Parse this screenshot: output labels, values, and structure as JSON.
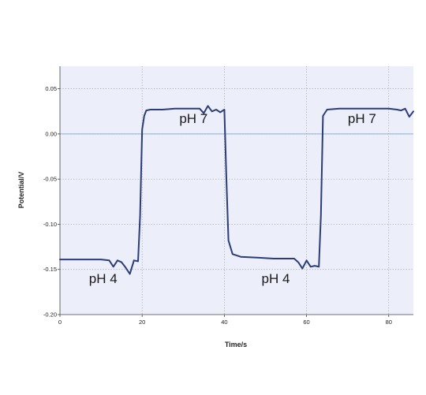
{
  "chart_data": {
    "type": "line",
    "title": "",
    "xlabel": "Time/s",
    "ylabel": "Potential/V",
    "xlim": [
      0,
      86
    ],
    "ylim": [
      -0.2,
      0.075
    ],
    "x_ticks": [
      0,
      20,
      40,
      60,
      80
    ],
    "x_tick_labels": [
      "0",
      "20",
      "40",
      "60",
      "80"
    ],
    "y_ticks": [
      0.05,
      0.0,
      -0.05,
      -0.1,
      -0.15,
      -0.2
    ],
    "y_tick_labels": [
      "0.05",
      "0.00",
      "-0.05",
      "-0.10",
      "-0.15",
      "-0.20"
    ],
    "grid": "dotted",
    "plot_background": "#eceef9",
    "reference_line_y": 0.0,
    "reference_line_color": "#6fa0c8",
    "series": [
      {
        "color": "#2b3d78",
        "x": [
          0,
          4,
          8,
          10,
          12,
          13,
          14,
          15,
          16,
          17,
          18,
          19,
          19.5,
          20,
          20.5,
          21,
          22,
          25,
          28,
          30,
          32,
          34,
          35,
          36,
          37,
          38,
          39,
          40,
          40.5,
          41,
          42,
          44,
          48,
          52,
          55,
          57,
          58,
          59,
          60,
          61,
          62,
          63,
          63.5,
          64,
          65,
          68,
          72,
          76,
          78,
          80,
          82,
          83,
          84,
          85,
          86
        ],
        "y": [
          -0.139,
          -0.139,
          -0.139,
          -0.139,
          -0.14,
          -0.147,
          -0.14,
          -0.142,
          -0.148,
          -0.155,
          -0.14,
          -0.141,
          -0.09,
          0.005,
          0.02,
          0.026,
          0.027,
          0.027,
          0.028,
          0.028,
          0.028,
          0.028,
          0.023,
          0.031,
          0.025,
          0.027,
          0.024,
          0.027,
          -0.05,
          -0.118,
          -0.133,
          -0.136,
          -0.137,
          -0.138,
          -0.138,
          -0.138,
          -0.142,
          -0.149,
          -0.14,
          -0.147,
          -0.146,
          -0.147,
          -0.09,
          0.02,
          0.027,
          0.028,
          0.028,
          0.028,
          0.028,
          0.028,
          0.027,
          0.026,
          0.028,
          0.019,
          0.025
        ]
      }
    ],
    "annotations": [
      {
        "text": "pH 7",
        "x": 32.5,
        "y": 0.012
      },
      {
        "text": "pH 4",
        "x": 10.5,
        "y": -0.165
      },
      {
        "text": "pH 4",
        "x": 52.5,
        "y": -0.165
      },
      {
        "text": "pH 7",
        "x": 73.5,
        "y": 0.012
      }
    ]
  }
}
